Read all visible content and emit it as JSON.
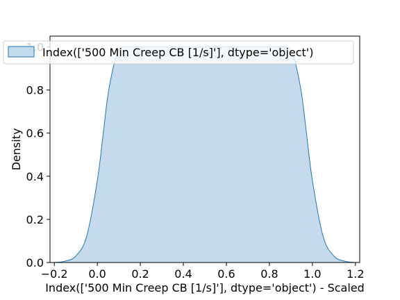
{
  "chart_data": {
    "type": "area",
    "title": "",
    "xlabel": "Index(['500 Min Creep CB [1/s]'], dtype='object') - Scaled",
    "ylabel": "Density",
    "xlim": [
      -0.22,
      1.22
    ],
    "ylim": [
      0.0,
      1.05
    ],
    "xticks": [
      -0.2,
      0.0,
      0.2,
      0.4,
      0.6,
      0.8,
      1.0,
      1.2
    ],
    "xtick_labels": [
      "−0.2",
      "0.0",
      "0.2",
      "0.4",
      "0.6",
      "0.8",
      "1.0",
      "1.2"
    ],
    "yticks": [
      0.0,
      0.2,
      0.4,
      0.6,
      0.8,
      1.0
    ],
    "ytick_labels": [
      "0.0",
      "0.2",
      "0.4",
      "0.6",
      "0.8",
      "1.0"
    ],
    "grid": false,
    "legend": {
      "placement": "top-left",
      "entries": [
        "Index(['500 Min Creep CB [1/s]'], dtype='object')"
      ]
    },
    "colors": {
      "line": "#1f77b4",
      "fill": "#c5daec"
    },
    "series": [
      {
        "name": "Index(['500 Min Creep CB [1/s]'], dtype='object')",
        "x": [
          -0.2,
          -0.15,
          -0.1,
          -0.05,
          0.0,
          0.03,
          0.05,
          0.08,
          0.1,
          0.12,
          0.15,
          0.2,
          0.3,
          0.4,
          0.5,
          0.6,
          0.7,
          0.8,
          0.85,
          0.88,
          0.9,
          0.92,
          0.95,
          0.97,
          1.0,
          1.05,
          1.1,
          1.15,
          1.2
        ],
        "y": [
          0.0,
          0.006,
          0.03,
          0.12,
          0.38,
          0.62,
          0.78,
          0.93,
          0.985,
          1.0,
          1.0,
          1.0,
          1.0,
          1.0,
          1.0,
          1.0,
          1.0,
          1.0,
          1.0,
          1.0,
          0.985,
          0.93,
          0.78,
          0.62,
          0.38,
          0.12,
          0.03,
          0.006,
          0.0
        ]
      }
    ]
  }
}
